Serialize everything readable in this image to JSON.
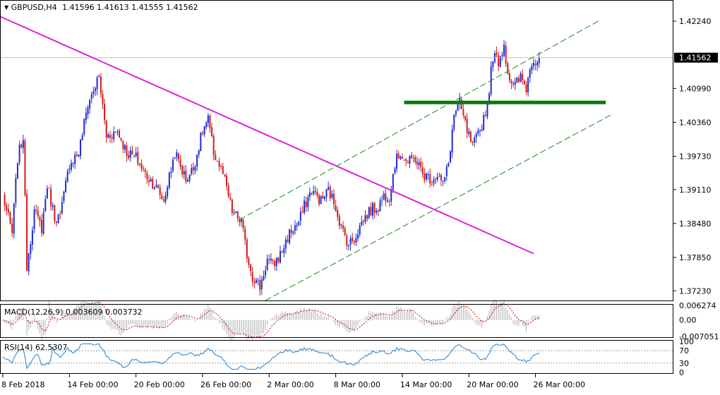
{
  "header": {
    "symbol": "GBPUSD,H4",
    "open": "1.41596",
    "high": "1.41613",
    "low": "1.41555",
    "close": "1.41562"
  },
  "macd_panel": {
    "label": "MACD(12,26,9) 0.003609 0.003732",
    "ticks": [
      "0.006274",
      "0.00",
      "-0.007051"
    ]
  },
  "rsi_panel": {
    "label": "RSI(14) 62.5307",
    "ticks": [
      "100",
      "70",
      "30",
      "0"
    ]
  },
  "colors": {
    "bull": "#1d2bd6",
    "bear": "#d11a1a",
    "trendline": "#e020e0",
    "channel": "#1a8a1a",
    "support": "#0a7a0a",
    "signal": "#c00000",
    "rsi": "#1e7fd6"
  },
  "chart_data": {
    "type": "candlestick",
    "title": "GBPUSD,H4",
    "y_ticks": [
      1.4224,
      1.4099,
      1.4036,
      1.3973,
      1.3911,
      1.3848,
      1.3785,
      1.3723
    ],
    "ylim": [
      1.3705,
      1.4262
    ],
    "last_price": 1.41562,
    "x_labels": [
      "8 Feb 2018",
      "14 Feb 00:00",
      "20 Feb 00:00",
      "26 Feb 00:00",
      "2 Mar 00:00",
      "8 Mar 00:00",
      "14 Mar 00:00",
      "20 Mar 00:00",
      "26 Mar 00:00"
    ],
    "x_label_bars": [
      0,
      36,
      72,
      108,
      144,
      180,
      216,
      252,
      288
    ],
    "n_bars": 291,
    "anchors": [
      [
        0,
        1.39
      ],
      [
        5,
        1.383
      ],
      [
        8,
        1.397
      ],
      [
        11,
        1.401
      ],
      [
        13,
        1.377
      ],
      [
        17,
        1.387
      ],
      [
        21,
        1.384
      ],
      [
        24,
        1.392
      ],
      [
        28,
        1.386
      ],
      [
        31,
        1.386
      ],
      [
        36,
        1.396
      ],
      [
        41,
        1.398
      ],
      [
        46,
        1.407
      ],
      [
        52,
        1.412
      ],
      [
        56,
        1.401
      ],
      [
        62,
        1.402
      ],
      [
        67,
        1.398
      ],
      [
        72,
        1.397
      ],
      [
        77,
        1.394
      ],
      [
        82,
        1.392
      ],
      [
        87,
        1.389
      ],
      [
        93,
        1.398
      ],
      [
        99,
        1.393
      ],
      [
        103,
        1.395
      ],
      [
        108,
        1.402
      ],
      [
        111,
        1.404
      ],
      [
        114,
        1.398
      ],
      [
        119,
        1.394
      ],
      [
        124,
        1.387
      ],
      [
        129,
        1.385
      ],
      [
        132,
        1.379
      ],
      [
        135,
        1.375
      ],
      [
        139,
        1.373
      ],
      [
        143,
        1.378
      ],
      [
        146,
        1.377
      ],
      [
        150,
        1.379
      ],
      [
        155,
        1.383
      ],
      [
        160,
        1.385
      ],
      [
        163,
        1.388
      ],
      [
        167,
        1.391
      ],
      [
        172,
        1.389
      ],
      [
        176,
        1.391
      ],
      [
        180,
        1.388
      ],
      [
        183,
        1.384
      ],
      [
        187,
        1.381
      ],
      [
        190,
        1.382
      ],
      [
        194,
        1.385
      ],
      [
        198,
        1.387
      ],
      [
        203,
        1.388
      ],
      [
        206,
        1.39
      ],
      [
        209,
        1.39
      ],
      [
        212,
        1.396
      ],
      [
        215,
        1.398
      ],
      [
        219,
        1.396
      ],
      [
        223,
        1.397
      ],
      [
        227,
        1.394
      ],
      [
        232,
        1.393
      ],
      [
        235,
        1.394
      ],
      [
        238,
        1.392
      ],
      [
        241,
        1.396
      ],
      [
        244,
        1.405
      ],
      [
        247,
        1.407
      ],
      [
        251,
        1.402
      ],
      [
        254,
        1.399
      ],
      [
        258,
        1.402
      ],
      [
        262,
        1.407
      ],
      [
        265,
        1.416
      ],
      [
        268,
        1.415
      ],
      [
        271,
        1.418
      ],
      [
        273,
        1.413
      ],
      [
        276,
        1.41
      ],
      [
        280,
        1.412
      ],
      [
        283,
        1.41
      ],
      [
        286,
        1.415
      ],
      [
        290,
        1.41562
      ]
    ],
    "support_level": 1.4073,
    "support_range_bars": [
      217,
      326
    ],
    "trendline": {
      "from": [
        -3,
        1.4235
      ],
      "to": [
        287,
        1.3792
      ]
    },
    "channel_upper": {
      "from": [
        128,
        1.3855
      ],
      "to": [
        323,
        1.4226
      ]
    },
    "channel_lower": {
      "from": [
        142,
        1.3705
      ],
      "to": [
        330,
        1.4052
      ]
    },
    "macd": {
      "ylim": [
        -0.007051,
        0.006274
      ]
    },
    "rsi": {
      "ylim": [
        0,
        100
      ],
      "levels": [
        70,
        30
      ],
      "last": 62.5307
    }
  }
}
